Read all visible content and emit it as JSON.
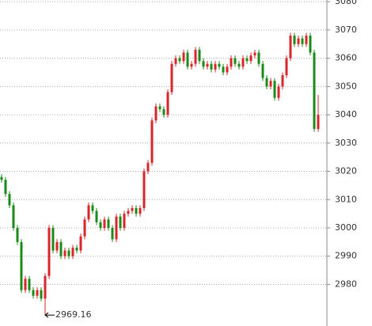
{
  "chart_data": {
    "type": "candlestick",
    "ylim": [
      2965.3,
      3080.6
    ],
    "yticks": [
      2980,
      2990,
      3000,
      3010,
      3020,
      3030,
      3040,
      3050,
      3060,
      3070,
      3080
    ],
    "grid": true,
    "up_color": "#d9262b",
    "down_color": "#1a8a1a",
    "open": [
      3018,
      3017,
      3012,
      3008,
      3000,
      2995,
      2978,
      2982,
      2978,
      2976,
      2978,
      2975,
      2983,
      3000,
      2992,
      2995,
      2990,
      2992,
      2990,
      2993,
      2992,
      2997,
      3003,
      3008,
      3006,
      3002,
      3000,
      3003,
      3000,
      2996,
      3004,
      3000,
      3005,
      3006,
      3007,
      3005,
      3007,
      3020,
      3023,
      3038,
      3043,
      3042,
      3040,
      3048,
      3058,
      3060,
      3059,
      3062,
      3057,
      3058,
      3063,
      3059,
      3057,
      3058,
      3056,
      3058,
      3057,
      3055,
      3057,
      3060,
      3058,
      3057,
      3060,
      3059,
      3061,
      3062,
      3058,
      3053,
      3050,
      3052,
      3046,
      3050,
      3054,
      3060,
      3068,
      3065,
      3067,
      3065,
      3068,
      3062,
      3035
    ],
    "close": [
      3017,
      3012,
      3008,
      3000,
      2995,
      2978,
      2982,
      2978,
      2976,
      2978,
      2975,
      2983,
      3000,
      2992,
      2995,
      2990,
      2992,
      2990,
      2993,
      2992,
      2997,
      3003,
      3008,
      3006,
      3002,
      3000,
      3003,
      3000,
      2996,
      3004,
      3000,
      3005,
      3006,
      3007,
      3005,
      3007,
      3020,
      3023,
      3038,
      3043,
      3042,
      3040,
      3048,
      3058,
      3060,
      3059,
      3062,
      3057,
      3058,
      3063,
      3059,
      3057,
      3058,
      3056,
      3058,
      3057,
      3055,
      3057,
      3060,
      3058,
      3057,
      3060,
      3059,
      3061,
      3062,
      3058,
      3053,
      3050,
      3052,
      3046,
      3050,
      3054,
      3060,
      3068,
      3065,
      3067,
      3065,
      3068,
      3062,
      3035,
      3040
    ],
    "high": [
      3019,
      3018,
      3013,
      3009,
      3001,
      2996,
      2983,
      2983,
      2979,
      2979,
      2979,
      2984,
      3001,
      3001,
      2996,
      2996,
      2993,
      2993,
      2994,
      2994,
      2998,
      3004,
      3009,
      3009,
      3007,
      3003,
      3004,
      3004,
      3001,
      3005,
      3005,
      3006,
      3007,
      3008,
      3008,
      3008,
      3021,
      3024,
      3039,
      3044,
      3044,
      3043,
      3049,
      3059,
      3061,
      3061,
      3063,
      3063,
      3059,
      3064,
      3064,
      3060,
      3059,
      3059,
      3059,
      3059,
      3058,
      3058,
      3061,
      3061,
      3059,
      3061,
      3061,
      3062,
      3063,
      3063,
      3059,
      3054,
      3053,
      3053,
      3051,
      3055,
      3061,
      3069,
      3069,
      3068,
      3068,
      3069,
      3069,
      3063,
      3047
    ],
    "low": [
      3016,
      3011,
      3007,
      2999,
      2994,
      2977,
      2977,
      2977,
      2975,
      2975,
      2974,
      2969.16,
      2982,
      2991,
      2991,
      2989,
      2989,
      2989,
      2989,
      2991,
      2991,
      2996,
      3002,
      3005,
      3001,
      2999,
      2999,
      2999,
      2995,
      2995,
      2999,
      2999,
      3004,
      3005,
      3004,
      3004,
      3006,
      3019,
      3022,
      3037,
      3041,
      3039,
      3039,
      3047,
      3057,
      3058,
      3058,
      3056,
      3056,
      3057,
      3058,
      3056,
      3056,
      3055,
      3055,
      3056,
      3054,
      3054,
      3056,
      3057,
      3056,
      3056,
      3058,
      3058,
      3060,
      3057,
      3052,
      3049,
      3049,
      3045,
      3045,
      3049,
      3053,
      3059,
      3064,
      3064,
      3064,
      3064,
      3061,
      3034,
      3034
    ]
  }
}
